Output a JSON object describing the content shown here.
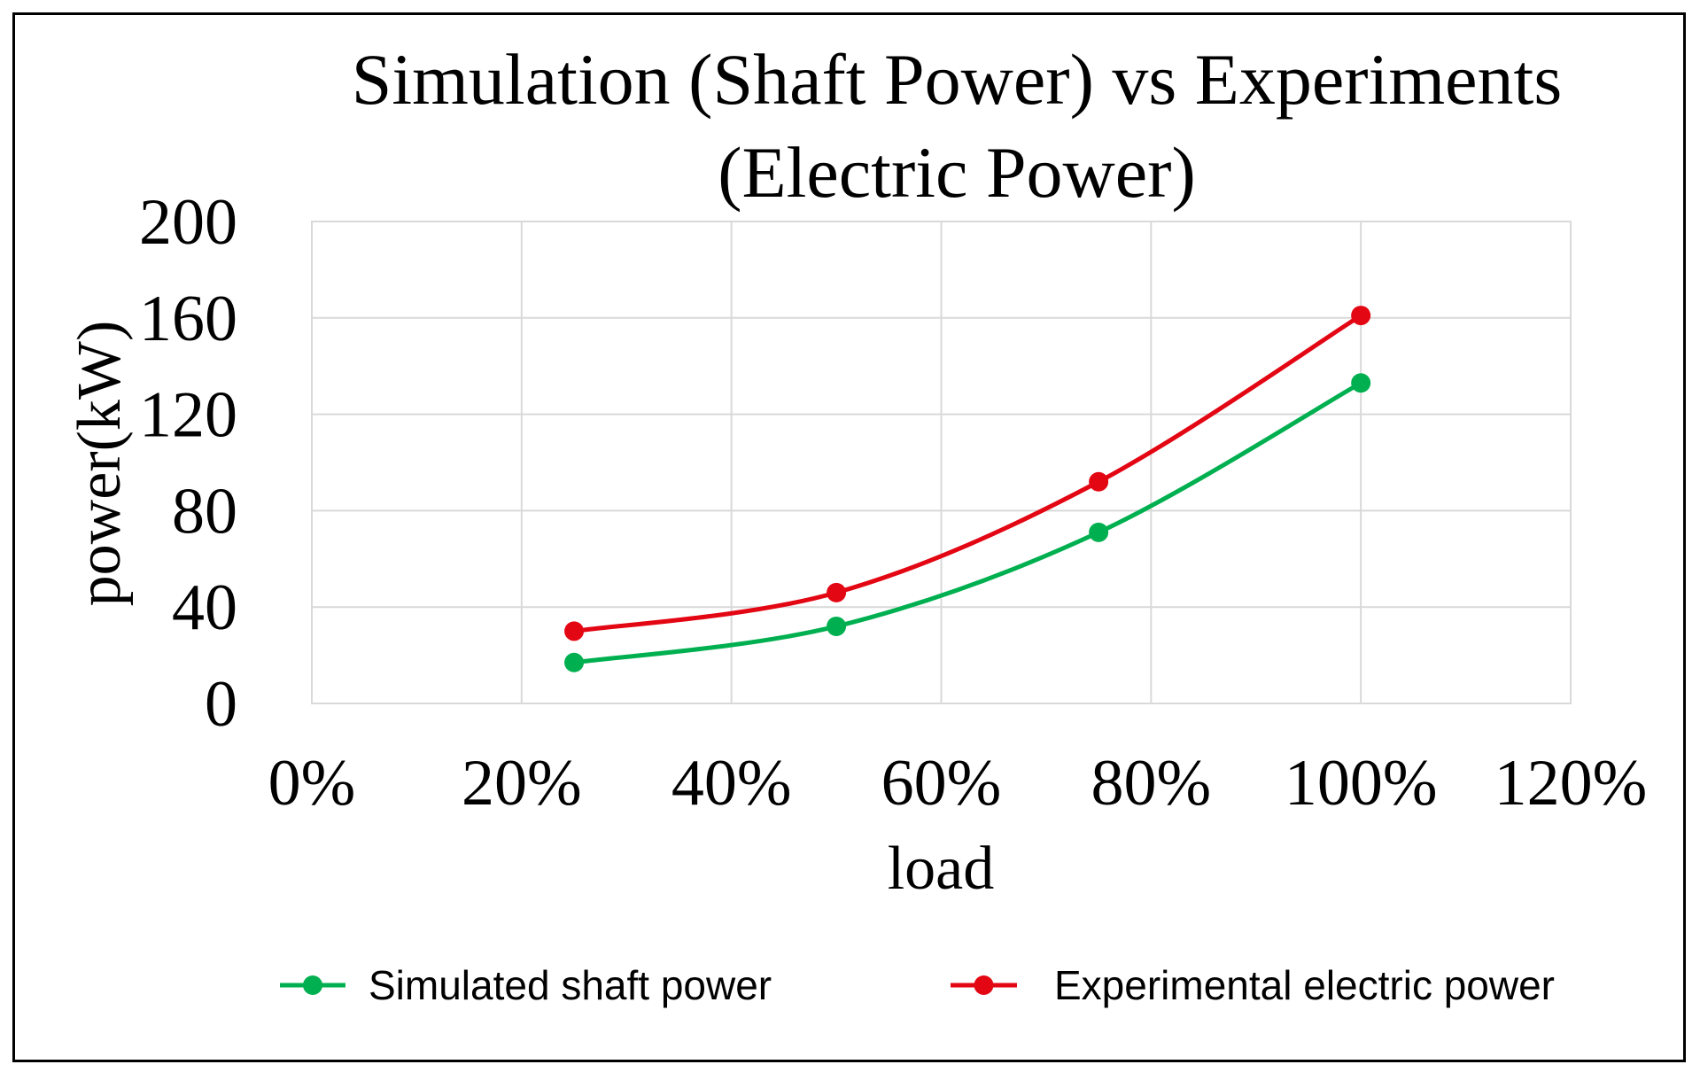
{
  "chart_data": {
    "type": "line",
    "title_lines": [
      "Simulation (Shaft Power) vs Experiments",
      "(Electric Power)"
    ],
    "xlabel": "load",
    "ylabel": "power(kW)",
    "xlim": [
      0,
      120
    ],
    "ylim": [
      0,
      200
    ],
    "x_ticks": [
      0,
      20,
      40,
      60,
      80,
      100,
      120
    ],
    "x_tick_labels": [
      "0%",
      "20%",
      "40%",
      "60%",
      "80%",
      "100%",
      "120%"
    ],
    "y_ticks": [
      0,
      40,
      80,
      120,
      160,
      200
    ],
    "y_tick_labels": [
      "0",
      "40",
      "80",
      "120",
      "160",
      "200"
    ],
    "grid": true,
    "legend_position": "bottom",
    "series": [
      {
        "name": "Simulated shaft power",
        "color": "#00b050",
        "x": [
          25,
          50,
          75,
          100
        ],
        "y": [
          17,
          32,
          71,
          133
        ]
      },
      {
        "name": "Experimental electric power",
        "color": "#e30613",
        "x": [
          25,
          50,
          75,
          100
        ],
        "y": [
          30,
          46,
          92,
          161
        ]
      }
    ]
  }
}
